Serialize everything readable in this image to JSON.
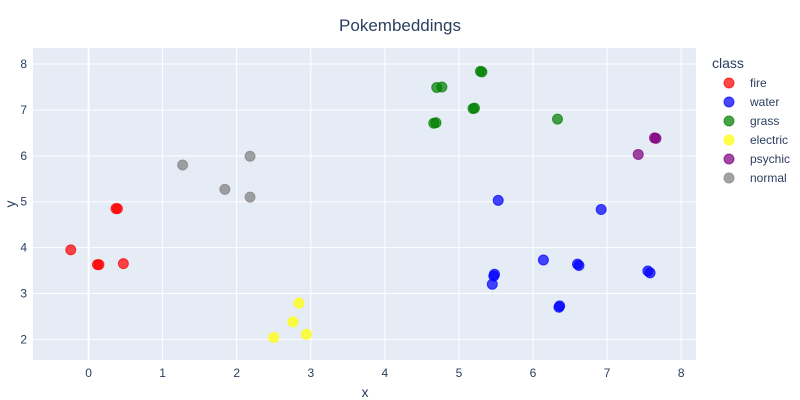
{
  "chart_data": {
    "type": "scatter",
    "title": "Pokembeddings",
    "xlabel": "x",
    "ylabel": "y",
    "xlim": [
      -0.75,
      8.2
    ],
    "ylim": [
      1.55,
      8.35
    ],
    "xticks": [
      0,
      1,
      2,
      3,
      4,
      5,
      6,
      7,
      8
    ],
    "yticks": [
      2,
      3,
      4,
      5,
      6,
      7,
      8
    ],
    "grid": true,
    "legend_title": "class",
    "legend_position": "right",
    "series": [
      {
        "name": "fire",
        "color": "#ff0000",
        "points": [
          [
            -0.24,
            3.95
          ],
          [
            0.12,
            3.63
          ],
          [
            0.14,
            3.63
          ],
          [
            0.37,
            4.85
          ],
          [
            0.39,
            4.85
          ],
          [
            0.47,
            3.65
          ]
        ]
      },
      {
        "name": "water",
        "color": "#0000ff",
        "points": [
          [
            5.45,
            3.2
          ],
          [
            5.47,
            3.38
          ],
          [
            5.48,
            3.42
          ],
          [
            5.53,
            5.03
          ],
          [
            6.14,
            3.73
          ],
          [
            6.35,
            2.7
          ],
          [
            6.36,
            2.73
          ],
          [
            6.6,
            3.64
          ],
          [
            6.62,
            3.61
          ],
          [
            6.92,
            4.83
          ],
          [
            7.55,
            3.49
          ],
          [
            7.58,
            3.45
          ]
        ]
      },
      {
        "name": "grass",
        "color": "#008000",
        "points": [
          [
            4.66,
            6.71
          ],
          [
            4.69,
            6.72
          ],
          [
            4.7,
            7.49
          ],
          [
            4.77,
            7.5
          ],
          [
            5.19,
            7.03
          ],
          [
            5.21,
            7.04
          ],
          [
            5.29,
            7.84
          ],
          [
            5.31,
            7.83
          ],
          [
            6.33,
            6.8
          ]
        ]
      },
      {
        "name": "electric",
        "color": "#ffff00",
        "points": [
          [
            2.5,
            2.04
          ],
          [
            2.76,
            2.38
          ],
          [
            2.84,
            2.79
          ],
          [
            2.94,
            2.11
          ]
        ]
      },
      {
        "name": "psychic",
        "color": "#800080",
        "points": [
          [
            7.42,
            6.03
          ],
          [
            7.64,
            6.39
          ],
          [
            7.66,
            6.38
          ]
        ]
      },
      {
        "name": "normal",
        "color": "#808080",
        "points": [
          [
            1.27,
            5.8
          ],
          [
            1.84,
            5.27
          ],
          [
            2.18,
            5.99
          ],
          [
            2.18,
            5.1
          ]
        ]
      }
    ]
  }
}
